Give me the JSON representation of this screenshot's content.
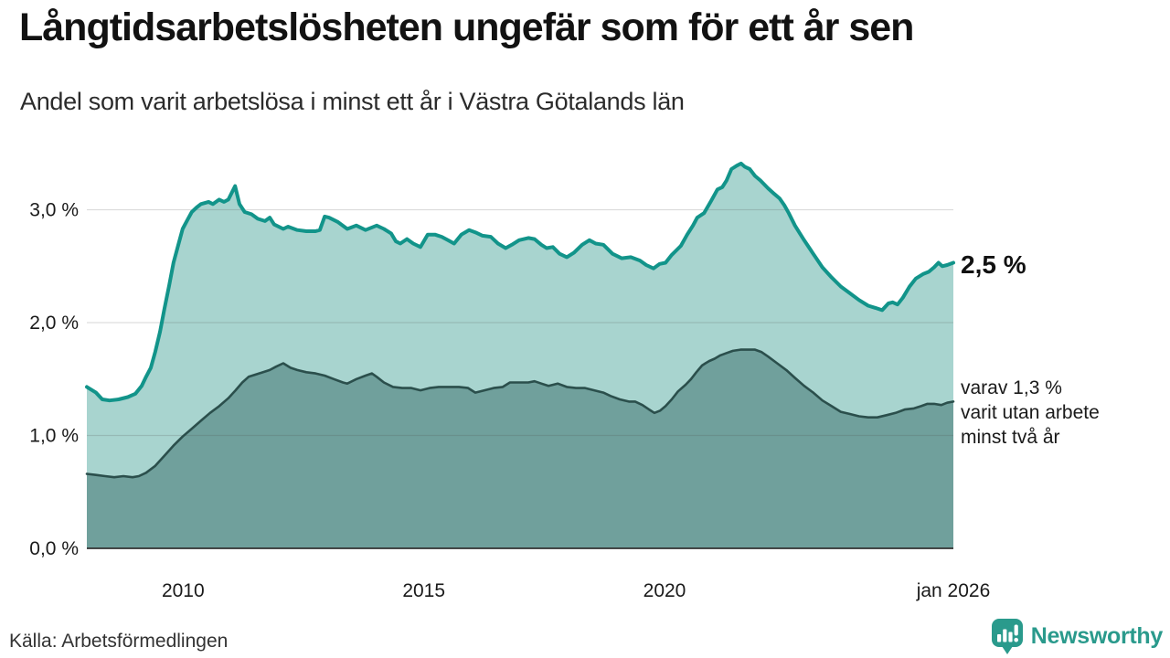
{
  "title": "Långtidsarbetslösheten ungefär som för ett år sen",
  "subtitle": "Andel som varit arbetslösa i minst ett år i Västra Götalands län",
  "source": "Källa: Arbetsförmedlingen",
  "branding": {
    "name": "Newsworthy",
    "color": "#2a9a8c"
  },
  "annotations": {
    "series1_end_label": "2,5 %",
    "series2_label_lines": [
      "varav 1,3 %",
      "varit utan arbete",
      "minst två år"
    ]
  },
  "chart_data": {
    "type": "area",
    "title": "Långtidsarbetslösheten ungefär som för ett år sen",
    "subtitle": "Andel som varit arbetslösa i minst ett år i Västra Götalands län",
    "grid": true,
    "x_axis": {
      "range": [
        2008,
        2026
      ],
      "ticks": [
        {
          "value": 2010,
          "label": "2010"
        },
        {
          "value": 2015,
          "label": "2015"
        },
        {
          "value": 2020,
          "label": "2020"
        },
        {
          "value": 2026,
          "label": "jan 2026"
        }
      ]
    },
    "y_axis": {
      "range": [
        0,
        3.45
      ],
      "unit": "%",
      "ticks": [
        {
          "value": 0,
          "label": "0,0 %"
        },
        {
          "value": 1,
          "label": "1,0 %"
        },
        {
          "value": 2,
          "label": "2,0 %"
        },
        {
          "value": 3,
          "label": "3,0 %"
        }
      ]
    },
    "series": [
      {
        "name": "Andel arbetslösa minst ett år",
        "end_label": "2,5 %",
        "end_value": 2.5,
        "line_color": "#12948a",
        "fill_color": "#a8d4cf",
        "points": [
          [
            2008.0,
            1.43
          ],
          [
            2008.19,
            1.38
          ],
          [
            2008.32,
            1.32
          ],
          [
            2008.47,
            1.31
          ],
          [
            2008.66,
            1.32
          ],
          [
            2008.85,
            1.34
          ],
          [
            2009.01,
            1.37
          ],
          [
            2009.14,
            1.44
          ],
          [
            2009.23,
            1.52
          ],
          [
            2009.33,
            1.6
          ],
          [
            2009.42,
            1.74
          ],
          [
            2009.52,
            1.92
          ],
          [
            2009.61,
            2.12
          ],
          [
            2009.71,
            2.33
          ],
          [
            2009.8,
            2.53
          ],
          [
            2009.9,
            2.69
          ],
          [
            2009.99,
            2.83
          ],
          [
            2010.09,
            2.91
          ],
          [
            2010.18,
            2.98
          ],
          [
            2010.28,
            3.02
          ],
          [
            2010.37,
            3.05
          ],
          [
            2010.53,
            3.07
          ],
          [
            2010.62,
            3.05
          ],
          [
            2010.75,
            3.09
          ],
          [
            2010.85,
            3.07
          ],
          [
            2010.94,
            3.09
          ],
          [
            2011.08,
            3.21
          ],
          [
            2011.17,
            3.05
          ],
          [
            2011.28,
            2.98
          ],
          [
            2011.42,
            2.96
          ],
          [
            2011.55,
            2.92
          ],
          [
            2011.7,
            2.9
          ],
          [
            2011.8,
            2.93
          ],
          [
            2011.89,
            2.87
          ],
          [
            2012.08,
            2.83
          ],
          [
            2012.18,
            2.85
          ],
          [
            2012.37,
            2.82
          ],
          [
            2012.56,
            2.81
          ],
          [
            2012.75,
            2.81
          ],
          [
            2012.84,
            2.82
          ],
          [
            2012.94,
            2.94
          ],
          [
            2013.03,
            2.93
          ],
          [
            2013.22,
            2.89
          ],
          [
            2013.41,
            2.83
          ],
          [
            2013.6,
            2.86
          ],
          [
            2013.79,
            2.82
          ],
          [
            2014.02,
            2.86
          ],
          [
            2014.17,
            2.83
          ],
          [
            2014.32,
            2.79
          ],
          [
            2014.42,
            2.72
          ],
          [
            2014.51,
            2.7
          ],
          [
            2014.65,
            2.74
          ],
          [
            2014.78,
            2.7
          ],
          [
            2014.93,
            2.67
          ],
          [
            2015.08,
            2.78
          ],
          [
            2015.23,
            2.78
          ],
          [
            2015.37,
            2.76
          ],
          [
            2015.5,
            2.73
          ],
          [
            2015.63,
            2.7
          ],
          [
            2015.78,
            2.78
          ],
          [
            2015.94,
            2.82
          ],
          [
            2016.07,
            2.8
          ],
          [
            2016.22,
            2.77
          ],
          [
            2016.39,
            2.76
          ],
          [
            2016.54,
            2.7
          ],
          [
            2016.7,
            2.66
          ],
          [
            2016.83,
            2.69
          ],
          [
            2016.98,
            2.73
          ],
          [
            2017.17,
            2.75
          ],
          [
            2017.3,
            2.74
          ],
          [
            2017.44,
            2.69
          ],
          [
            2017.55,
            2.66
          ],
          [
            2017.68,
            2.67
          ],
          [
            2017.82,
            2.61
          ],
          [
            2017.97,
            2.58
          ],
          [
            2018.12,
            2.62
          ],
          [
            2018.29,
            2.69
          ],
          [
            2018.44,
            2.73
          ],
          [
            2018.57,
            2.7
          ],
          [
            2018.73,
            2.69
          ],
          [
            2018.92,
            2.61
          ],
          [
            2019.11,
            2.57
          ],
          [
            2019.3,
            2.58
          ],
          [
            2019.49,
            2.55
          ],
          [
            2019.62,
            2.51
          ],
          [
            2019.77,
            2.48
          ],
          [
            2019.9,
            2.52
          ],
          [
            2020.02,
            2.53
          ],
          [
            2020.15,
            2.6
          ],
          [
            2020.34,
            2.68
          ],
          [
            2020.47,
            2.78
          ],
          [
            2020.59,
            2.86
          ],
          [
            2020.68,
            2.93
          ],
          [
            2020.82,
            2.97
          ],
          [
            2020.97,
            3.08
          ],
          [
            2021.1,
            3.18
          ],
          [
            2021.2,
            3.2
          ],
          [
            2021.29,
            3.26
          ],
          [
            2021.39,
            3.36
          ],
          [
            2021.5,
            3.39
          ],
          [
            2021.59,
            3.41
          ],
          [
            2021.67,
            3.38
          ],
          [
            2021.77,
            3.36
          ],
          [
            2021.88,
            3.3
          ],
          [
            2021.99,
            3.26
          ],
          [
            2022.15,
            3.19
          ],
          [
            2022.28,
            3.14
          ],
          [
            2022.39,
            3.1
          ],
          [
            2022.49,
            3.04
          ],
          [
            2022.58,
            2.97
          ],
          [
            2022.71,
            2.86
          ],
          [
            2022.9,
            2.73
          ],
          [
            2023.09,
            2.61
          ],
          [
            2023.28,
            2.49
          ],
          [
            2023.47,
            2.4
          ],
          [
            2023.66,
            2.32
          ],
          [
            2023.85,
            2.26
          ],
          [
            2024.04,
            2.2
          ],
          [
            2024.23,
            2.15
          ],
          [
            2024.38,
            2.13
          ],
          [
            2024.52,
            2.11
          ],
          [
            2024.65,
            2.17
          ],
          [
            2024.74,
            2.18
          ],
          [
            2024.84,
            2.16
          ],
          [
            2024.95,
            2.22
          ],
          [
            2025.09,
            2.32
          ],
          [
            2025.22,
            2.39
          ],
          [
            2025.37,
            2.43
          ],
          [
            2025.49,
            2.45
          ],
          [
            2025.6,
            2.49
          ],
          [
            2025.69,
            2.53
          ],
          [
            2025.77,
            2.5
          ],
          [
            2025.87,
            2.51
          ],
          [
            2026.0,
            2.53
          ]
        ]
      },
      {
        "name": "varav utan arbete minst två år",
        "end_label": "varav 1,3 % varit utan arbete minst två år",
        "end_value": 1.3,
        "line_color": "#2b4f4c",
        "fill_color": "#70a09c",
        "points": [
          [
            2008.0,
            0.66
          ],
          [
            2008.19,
            0.65
          ],
          [
            2008.38,
            0.64
          ],
          [
            2008.57,
            0.63
          ],
          [
            2008.76,
            0.64
          ],
          [
            2008.95,
            0.63
          ],
          [
            2009.08,
            0.64
          ],
          [
            2009.23,
            0.67
          ],
          [
            2009.42,
            0.73
          ],
          [
            2009.61,
            0.82
          ],
          [
            2009.8,
            0.91
          ],
          [
            2009.99,
            0.99
          ],
          [
            2010.18,
            1.06
          ],
          [
            2010.37,
            1.13
          ],
          [
            2010.56,
            1.2
          ],
          [
            2010.75,
            1.26
          ],
          [
            2010.94,
            1.33
          ],
          [
            2011.09,
            1.4
          ],
          [
            2011.23,
            1.47
          ],
          [
            2011.36,
            1.52
          ],
          [
            2011.51,
            1.54
          ],
          [
            2011.66,
            1.56
          ],
          [
            2011.8,
            1.58
          ],
          [
            2011.93,
            1.61
          ],
          [
            2012.08,
            1.64
          ],
          [
            2012.23,
            1.6
          ],
          [
            2012.37,
            1.58
          ],
          [
            2012.56,
            1.56
          ],
          [
            2012.75,
            1.55
          ],
          [
            2012.94,
            1.53
          ],
          [
            2013.13,
            1.5
          ],
          [
            2013.32,
            1.47
          ],
          [
            2013.41,
            1.46
          ],
          [
            2013.6,
            1.5
          ],
          [
            2013.79,
            1.53
          ],
          [
            2013.92,
            1.55
          ],
          [
            2014.02,
            1.52
          ],
          [
            2014.17,
            1.47
          ],
          [
            2014.36,
            1.43
          ],
          [
            2014.55,
            1.42
          ],
          [
            2014.74,
            1.42
          ],
          [
            2014.93,
            1.4
          ],
          [
            2015.12,
            1.42
          ],
          [
            2015.31,
            1.43
          ],
          [
            2015.54,
            1.43
          ],
          [
            2015.73,
            1.43
          ],
          [
            2015.92,
            1.42
          ],
          [
            2016.07,
            1.38
          ],
          [
            2016.26,
            1.4
          ],
          [
            2016.45,
            1.42
          ],
          [
            2016.64,
            1.43
          ],
          [
            2016.79,
            1.47
          ],
          [
            2016.98,
            1.47
          ],
          [
            2017.17,
            1.47
          ],
          [
            2017.3,
            1.48
          ],
          [
            2017.44,
            1.46
          ],
          [
            2017.59,
            1.44
          ],
          [
            2017.78,
            1.46
          ],
          [
            2017.97,
            1.43
          ],
          [
            2018.16,
            1.42
          ],
          [
            2018.35,
            1.42
          ],
          [
            2018.54,
            1.4
          ],
          [
            2018.73,
            1.38
          ],
          [
            2018.88,
            1.35
          ],
          [
            2019.07,
            1.32
          ],
          [
            2019.26,
            1.3
          ],
          [
            2019.39,
            1.3
          ],
          [
            2019.54,
            1.27
          ],
          [
            2019.68,
            1.23
          ],
          [
            2019.79,
            1.2
          ],
          [
            2019.91,
            1.22
          ],
          [
            2020.02,
            1.26
          ],
          [
            2020.15,
            1.32
          ],
          [
            2020.28,
            1.39
          ],
          [
            2020.44,
            1.45
          ],
          [
            2020.55,
            1.5
          ],
          [
            2020.66,
            1.56
          ],
          [
            2020.78,
            1.62
          ],
          [
            2020.85,
            1.64
          ],
          [
            2020.93,
            1.66
          ],
          [
            2021.04,
            1.68
          ],
          [
            2021.16,
            1.71
          ],
          [
            2021.29,
            1.73
          ],
          [
            2021.42,
            1.75
          ],
          [
            2021.58,
            1.76
          ],
          [
            2021.73,
            1.76
          ],
          [
            2021.88,
            1.76
          ],
          [
            2022.01,
            1.74
          ],
          [
            2022.15,
            1.7
          ],
          [
            2022.34,
            1.64
          ],
          [
            2022.53,
            1.58
          ],
          [
            2022.71,
            1.51
          ],
          [
            2022.9,
            1.44
          ],
          [
            2023.09,
            1.38
          ],
          [
            2023.28,
            1.31
          ],
          [
            2023.47,
            1.26
          ],
          [
            2023.66,
            1.21
          ],
          [
            2023.85,
            1.19
          ],
          [
            2024.04,
            1.17
          ],
          [
            2024.23,
            1.16
          ],
          [
            2024.42,
            1.16
          ],
          [
            2024.61,
            1.18
          ],
          [
            2024.8,
            1.2
          ],
          [
            2024.99,
            1.23
          ],
          [
            2025.18,
            1.24
          ],
          [
            2025.33,
            1.26
          ],
          [
            2025.46,
            1.28
          ],
          [
            2025.6,
            1.28
          ],
          [
            2025.75,
            1.27
          ],
          [
            2025.87,
            1.29
          ],
          [
            2026.0,
            1.3
          ]
        ]
      }
    ]
  }
}
